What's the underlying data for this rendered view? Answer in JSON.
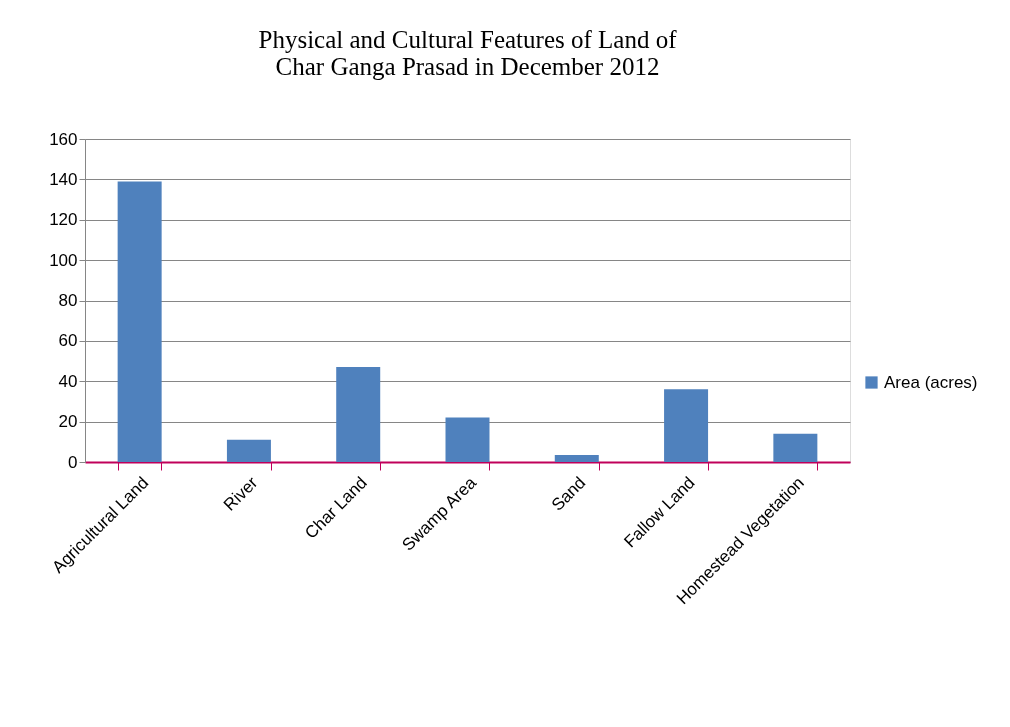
{
  "chart_data": {
    "type": "bar",
    "title": "Physical and Cultural Features of Land of\nChar Ganga Prasad in December 2012",
    "categories": [
      "Agricultural Land",
      "River",
      "Char Land",
      "Swamp Area",
      "Sand",
      "Fallow Land",
      "Homestead Vegetation"
    ],
    "series": [
      {
        "name": "Area (acres)",
        "color": "#4f81bd",
        "values": [
          139,
          11,
          47,
          22,
          3.5,
          36,
          14
        ]
      }
    ],
    "ylim": [
      0,
      160
    ],
    "yticks": [
      0,
      20,
      40,
      60,
      80,
      100,
      120,
      140,
      160
    ],
    "grid": "y",
    "legend": "right"
  }
}
